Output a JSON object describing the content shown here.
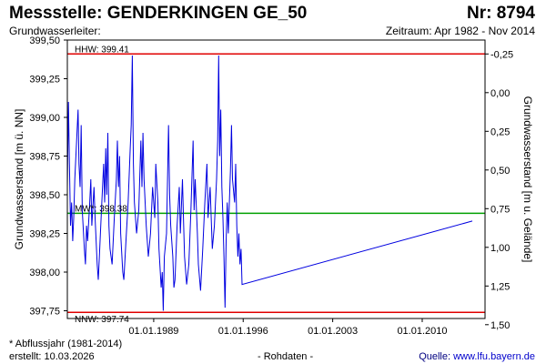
{
  "header": {
    "title": "Messstelle: GENDERKINGEN GE_50",
    "number": "Nr: 8794",
    "aquifer": "Grundwasserleiter:",
    "period": "Zeitraum: Apr 1982 - Nov 2014"
  },
  "footer": {
    "footnote": "* Abflussjahr (1981-2014)",
    "created": "erstellt:  10.03.2026",
    "rawdata": "- Rohdaten -",
    "source_label": "Quelle:",
    "source_link": "www.lfu.bayern.de"
  },
  "chart_data": {
    "type": "line",
    "ylabel": "Grundwasserstand [m ü. NN]",
    "y2label": "Grundwasserstand [m u. Gelände]",
    "ylim": [
      397.7,
      399.5
    ],
    "y_ticks": [
      "399,50",
      "399,25",
      "399,00",
      "398,75",
      "398,50",
      "398,25",
      "398,00",
      "397,75"
    ],
    "y2_ticks": [
      "-0,25",
      "0,00",
      "0,25",
      "0,50",
      "0,75",
      "1,00",
      "1,25",
      "1,50"
    ],
    "y2_values": [
      -0.25,
      0.0,
      0.25,
      0.5,
      0.75,
      1.0,
      1.25,
      1.5
    ],
    "y2_ground_level": 399.16,
    "xlim": [
      "1982-04-01",
      "2014-11-30"
    ],
    "x_ticks": [
      "01.01.1989",
      "01.01.1996",
      "01.01.2003",
      "01.01.2010"
    ],
    "x_tick_dates": [
      "1989-01-01",
      "1996-01-01",
      "2003-01-01",
      "2010-01-01"
    ],
    "reference_lines": [
      {
        "label": "HHW: 399.41",
        "value": 399.41,
        "color": "#e00000"
      },
      {
        "label": "MW*: 398.38",
        "value": 398.38,
        "color": "#00a000"
      },
      {
        "label": "NNW: 397.74",
        "value": 397.74,
        "color": "#e00000"
      }
    ],
    "series": [
      {
        "color": "#0000e0",
        "points": [
          [
            "1982-04-01",
            398.55
          ],
          [
            "1982-05-01",
            399.1
          ],
          [
            "1982-06-01",
            398.7
          ],
          [
            "1982-07-01",
            398.3
          ],
          [
            "1982-08-01",
            398.45
          ],
          [
            "1982-09-01",
            398.2
          ],
          [
            "1982-10-01",
            398.35
          ],
          [
            "1982-11-01",
            398.6
          ],
          [
            "1983-01-01",
            398.9
          ],
          [
            "1983-02-01",
            399.05
          ],
          [
            "1983-03-01",
            398.7
          ],
          [
            "1983-04-01",
            398.55
          ],
          [
            "1983-05-01",
            398.95
          ],
          [
            "1983-06-01",
            398.4
          ],
          [
            "1983-08-01",
            398.15
          ],
          [
            "1983-09-01",
            398.05
          ],
          [
            "1983-10-01",
            398.3
          ],
          [
            "1983-11-01",
            398.2
          ],
          [
            "1984-01-01",
            398.45
          ],
          [
            "1984-02-01",
            398.6
          ],
          [
            "1984-03-01",
            398.3
          ],
          [
            "1984-05-01",
            398.55
          ],
          [
            "1984-06-01",
            398.35
          ],
          [
            "1984-08-01",
            398.05
          ],
          [
            "1984-09-01",
            397.95
          ],
          [
            "1984-10-01",
            398.1
          ],
          [
            "1984-12-01",
            398.4
          ],
          [
            "1985-02-01",
            398.7
          ],
          [
            "1985-03-01",
            398.45
          ],
          [
            "1985-04-01",
            398.8
          ],
          [
            "1985-05-01",
            398.5
          ],
          [
            "1985-06-01",
            398.9
          ],
          [
            "1985-07-01",
            398.3
          ],
          [
            "1985-08-01",
            398.15
          ],
          [
            "1985-10-01",
            398.05
          ],
          [
            "1985-12-01",
            398.35
          ],
          [
            "1986-02-01",
            398.6
          ],
          [
            "1986-03-01",
            398.85
          ],
          [
            "1986-04-01",
            398.55
          ],
          [
            "1986-05-01",
            398.75
          ],
          [
            "1986-06-01",
            398.25
          ],
          [
            "1986-08-01",
            398.0
          ],
          [
            "1986-09-01",
            397.95
          ],
          [
            "1986-11-01",
            398.2
          ],
          [
            "1987-01-01",
            398.45
          ],
          [
            "1987-03-01",
            398.8
          ],
          [
            "1987-04-01",
            398.95
          ],
          [
            "1987-05-01",
            399.4
          ],
          [
            "1987-06-01",
            398.7
          ],
          [
            "1987-07-01",
            398.45
          ],
          [
            "1987-09-01",
            398.25
          ],
          [
            "1987-11-01",
            398.4
          ],
          [
            "1988-01-01",
            398.85
          ],
          [
            "1988-02-01",
            398.55
          ],
          [
            "1988-03-01",
            398.9
          ],
          [
            "1988-04-01",
            398.6
          ],
          [
            "1988-06-01",
            398.3
          ],
          [
            "1988-08-01",
            398.1
          ],
          [
            "1988-10-01",
            398.25
          ],
          [
            "1988-12-01",
            398.55
          ],
          [
            "1989-02-01",
            398.35
          ],
          [
            "1989-03-01",
            398.7
          ],
          [
            "1989-05-01",
            398.45
          ],
          [
            "1989-06-01",
            398.15
          ],
          [
            "1989-08-01",
            397.9
          ],
          [
            "1989-09-01",
            398.0
          ],
          [
            "1989-10-01",
            397.75
          ],
          [
            "1989-11-01",
            398.1
          ],
          [
            "1990-01-01",
            398.25
          ],
          [
            "1990-02-01",
            398.6
          ],
          [
            "1990-03-01",
            398.95
          ],
          [
            "1990-04-01",
            398.5
          ],
          [
            "1990-05-01",
            398.3
          ],
          [
            "1990-07-01",
            398.1
          ],
          [
            "1990-08-01",
            397.9
          ],
          [
            "1990-09-01",
            397.95
          ],
          [
            "1990-11-01",
            398.3
          ],
          [
            "1991-01-01",
            398.55
          ],
          [
            "1991-02-01",
            398.25
          ],
          [
            "1991-04-01",
            398.6
          ],
          [
            "1991-05-01",
            398.35
          ],
          [
            "1991-06-01",
            398.1
          ],
          [
            "1991-08-01",
            397.92
          ],
          [
            "1991-10-01",
            398.05
          ],
          [
            "1991-12-01",
            398.4
          ],
          [
            "1992-02-01",
            398.85
          ],
          [
            "1992-03-01",
            398.4
          ],
          [
            "1992-04-01",
            398.6
          ],
          [
            "1992-06-01",
            398.25
          ],
          [
            "1992-07-01",
            398.05
          ],
          [
            "1992-09-01",
            397.88
          ],
          [
            "1992-11-01",
            398.15
          ],
          [
            "1993-01-01",
            398.45
          ],
          [
            "1993-03-01",
            398.7
          ],
          [
            "1993-04-01",
            398.35
          ],
          [
            "1993-06-01",
            398.55
          ],
          [
            "1993-08-01",
            398.15
          ],
          [
            "1993-10-01",
            398.3
          ],
          [
            "1993-12-01",
            398.6
          ],
          [
            "1994-01-01",
            398.85
          ],
          [
            "1994-02-01",
            399.4
          ],
          [
            "1994-03-01",
            398.75
          ],
          [
            "1994-04-01",
            399.05
          ],
          [
            "1994-05-01",
            398.55
          ],
          [
            "1994-06-01",
            398.35
          ],
          [
            "1994-07-01",
            398.1
          ],
          [
            "1994-08-01",
            397.77
          ],
          [
            "1994-09-01",
            398.2
          ],
          [
            "1994-10-01",
            398.45
          ],
          [
            "1994-11-01",
            398.25
          ],
          [
            "1995-01-01",
            398.65
          ],
          [
            "1995-02-01",
            398.95
          ],
          [
            "1995-03-01",
            398.6
          ],
          [
            "1995-05-01",
            398.45
          ],
          [
            "1995-06-01",
            398.7
          ],
          [
            "1995-07-01",
            398.3
          ],
          [
            "1995-08-01",
            398.1
          ],
          [
            "1995-09-01",
            398.25
          ],
          [
            "1995-10-01",
            398.05
          ],
          [
            "1995-11-01",
            398.15
          ],
          [
            "1995-12-01",
            397.92
          ],
          [
            "2013-12-01",
            398.33
          ]
        ]
      }
    ]
  }
}
